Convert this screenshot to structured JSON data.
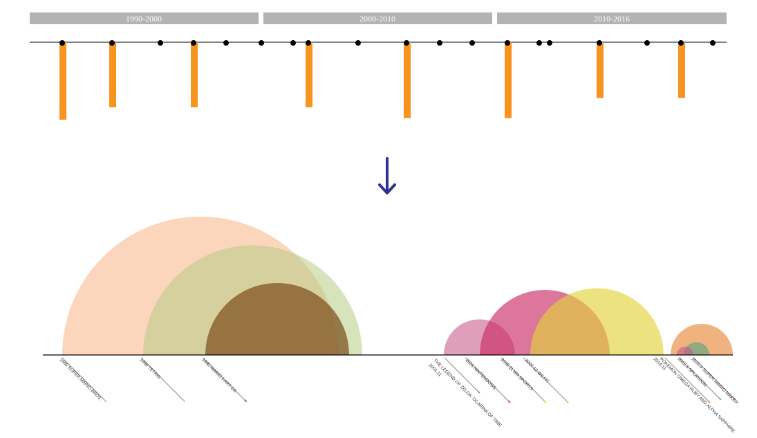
{
  "periods": [
    {
      "label": "1990-2000"
    },
    {
      "label": "2000-2010"
    },
    {
      "label": "2010-2016"
    }
  ],
  "colors": {
    "period_bar": "#b3b3b3",
    "timeline_bar": "#f7941d",
    "dot": "#000000",
    "arrow": "#2e3192",
    "axis": "#000000"
  },
  "timeline": {
    "events": [
      {
        "bar": 1.0
      },
      {
        "bar": 0.84
      },
      {
        "bar": 0
      },
      {
        "bar": 0.84
      },
      {
        "bar": 0
      },
      {
        "bar": 0
      },
      {
        "bar": 0
      },
      {
        "bar": 0.84
      },
      {
        "bar": 0
      },
      {
        "bar": 0.98
      },
      {
        "bar": 0
      },
      {
        "bar": 0
      },
      {
        "bar": 0.98
      },
      {
        "bar": 0
      },
      {
        "bar": 0
      },
      {
        "bar": 0.72
      },
      {
        "bar": 0
      },
      {
        "bar": 0.72
      },
      {
        "bar": 0
      }
    ]
  },
  "arcs": {
    "games": [
      {
        "label": "1985   SUPER MARIO BROS.",
        "color": "#f9a56a",
        "size": 1.0
      },
      {
        "label": "1989   TETRIS",
        "color": "#b4cc83",
        "size": 0.73
      },
      {
        "label": "1992   MARIO KART DS",
        "color": "#7a4b1a",
        "size": 0.48
      },
      {
        "label": "THE LEGEND OF ZELDA: OCARINA OF TIME",
        "sublabel": "2001.11",
        "color": "#c95e8e",
        "size": 0.24
      },
      {
        "label": "2005   NINTENDOGS",
        "color": "#c92c65",
        "size": 0.51
      },
      {
        "label": "2006.11   WII SPORTS",
        "color": "#e2d33c",
        "size": 0.45
      },
      {
        "label": "2007.12   WII FIT",
        "color": "#e4b84a",
        "size": 0.45
      },
      {
        "label": "POKEMON OMEGA RUBY AND ALPHA SAPPHIRE",
        "sublabel": "2014.11",
        "color": "#e8883a",
        "size": 0.21
      },
      {
        "label": "2015.5   SPLATOON",
        "color": "#6aa582",
        "size": 0.08
      },
      {
        "label": "2015.9   SUPER MARIO MAKER",
        "color": "#c7568a",
        "size": 0.04
      }
    ]
  }
}
